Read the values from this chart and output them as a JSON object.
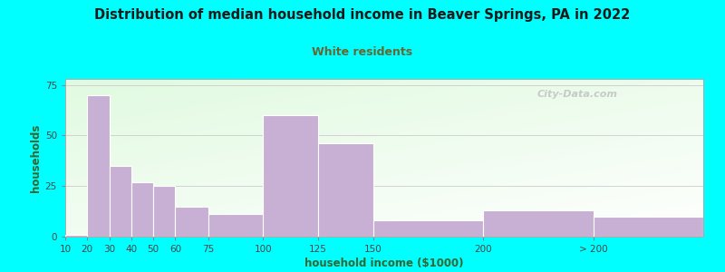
{
  "title": "Distribution of median household income in Beaver Springs, PA in 2022",
  "subtitle": "White residents",
  "xlabel": "household income ($1000)",
  "ylabel": "households",
  "bg_outer": "#00FFFF",
  "bar_color": "#c8afd4",
  "bar_edgecolor": "#ffffff",
  "title_color": "#1a1a1a",
  "subtitle_color": "#666633",
  "axis_label_color": "#336633",
  "tick_label_color": "#444444",
  "watermark": "City-Data.com",
  "categories": [
    "10",
    "20",
    "30",
    "40",
    "50",
    "60",
    "75",
    "100",
    "125",
    "150",
    "200",
    "> 200"
  ],
  "widths": [
    10,
    10,
    10,
    10,
    10,
    15,
    25,
    25,
    25,
    50,
    50,
    50
  ],
  "heights": [
    1,
    70,
    35,
    27,
    25,
    15,
    11,
    60,
    46,
    8,
    13,
    10
  ],
  "lefts": [
    10,
    20,
    30,
    40,
    50,
    60,
    75,
    100,
    125,
    150,
    200,
    250
  ],
  "xlim": [
    10,
    300
  ],
  "ylim": [
    0,
    78
  ],
  "yticks": [
    0,
    25,
    50,
    75
  ],
  "figsize": [
    8.0,
    3.0
  ],
  "dpi": 100
}
